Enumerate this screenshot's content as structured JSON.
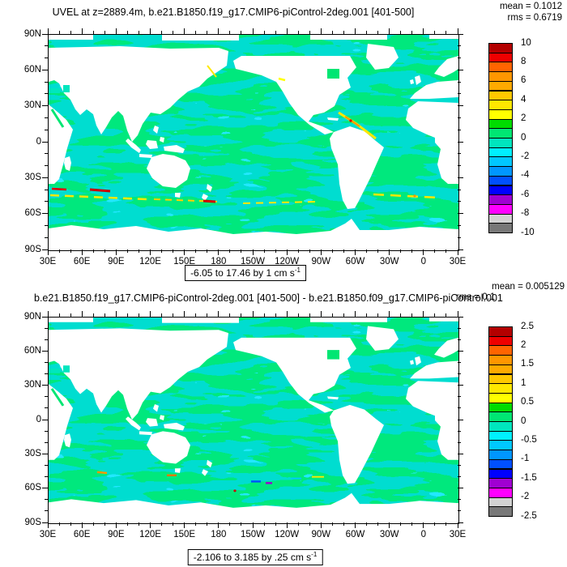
{
  "panel1": {
    "title": "UVEL at z=2889.4m, b.e21.B1850.f19_g17.CMIP6-piControl-2deg.001 [401-500]",
    "mean": "mean = 0.1012",
    "rms": "rms = 0.6719",
    "caption": "-6.05 to 17.46 by 1 cm s",
    "caption_sup": "-1",
    "colorbar_labels": [
      "10",
      "8",
      "6",
      "4",
      "2",
      "0",
      "-2",
      "-4",
      "-6",
      "-8",
      "-10"
    ]
  },
  "panel2": {
    "title": "b.e21.B1850.f19_g17.CMIP6-piControl-2deg.001 [401-500] - b.e21.B1850.f09_g17.CMIP6-piControl.001",
    "mean": "mean = 0.005129",
    "rms": "rms = 0.1",
    "caption": "-2.106 to 3.185 by .25 cm s",
    "caption_sup": "-1",
    "colorbar_labels": [
      "2.5",
      "2",
      "1.5",
      "1",
      "0.5",
      "0",
      "-0.5",
      "-1",
      "-1.5",
      "-2",
      "-2.5"
    ]
  },
  "axes": {
    "lon_labels": [
      "30E",
      "60E",
      "90E",
      "120E",
      "150E",
      "180",
      "150W",
      "120W",
      "90W",
      "60W",
      "30W",
      "0",
      "30E"
    ],
    "lat_labels": [
      "90N",
      "60N",
      "30N",
      "0",
      "30S",
      "60S",
      "90S"
    ]
  },
  "colors": {
    "scale": [
      "#b40000",
      "#ee0000",
      "#ff6400",
      "#ff9600",
      "#ffaa00",
      "#ffc800",
      "#ffe800",
      "#ffff00",
      "#00dc00",
      "#00e673",
      "#00e6be",
      "#00f0ff",
      "#00c8ff",
      "#0096ff",
      "#0050ff",
      "#0000ff",
      "#a000d2",
      "#ff00ff",
      "#d2d2d2",
      "#787878"
    ],
    "ocean_green": "#00e87d",
    "ocean_turquoise": "#00ddd0",
    "ocean_cyan": "#20e8ff",
    "land": "#ffffff",
    "frame": "#000000"
  },
  "chart_data": [
    {
      "type": "heatmap",
      "variable": "UVEL",
      "depth": "z=2889.4m",
      "title": "UVEL at z=2889.4m, b.e21.B1850.f19_g17.CMIP6-piControl-2deg.001 [401-500]",
      "units": "cm s-1",
      "stats": {
        "mean": 0.1012,
        "rms": 0.6719
      },
      "range": {
        "min": -6.05,
        "max": 17.46,
        "contour_interval": 1
      },
      "colorbar_levels": [
        10,
        8,
        6,
        4,
        2,
        0,
        -2,
        -4,
        -6,
        -8,
        -10
      ],
      "palette": [
        "#b40000",
        "#ee0000",
        "#ff6400",
        "#ff9600",
        "#ffaa00",
        "#ffc800",
        "#ffe800",
        "#ffff00",
        "#00dc00",
        "#00e673",
        "#00e6be",
        "#00f0ff",
        "#00c8ff",
        "#0096ff",
        "#0050ff",
        "#0000ff",
        "#a000d2",
        "#ff00ff",
        "#d2d2d2",
        "#787878"
      ],
      "x_ticks": [
        "30E",
        "60E",
        "90E",
        "120E",
        "150E",
        "180",
        "150W",
        "120W",
        "90W",
        "60W",
        "30W",
        "0",
        "30E"
      ],
      "y_ticks": [
        "90N",
        "60N",
        "30N",
        "0",
        "30S",
        "60S",
        "90S"
      ],
      "projection": "global cylindrical equidistant, longitude 30E to 30E (wrap), land masked white",
      "features": "ocean interior mostly 0 to 1 cm/s (spring green) with 0 to -1 patches (turquoise/cyan); strong yellow/orange/red streaks along Antarctic Circumpolar Current near 50-60S and along western boundary currents (Gulf Stream / Caribbean coast)"
    },
    {
      "type": "heatmap",
      "variable": "UVEL difference",
      "depth": "z=2889.4m",
      "title": "b.e21.B1850.f19_g17.CMIP6-piControl-2deg.001 [401-500] - b.e21.B1850.f09_g17.CMIP6-piControl.001",
      "units": "cm s-1",
      "stats": {
        "mean": 0.005129,
        "rms": "0.1 (partially obscured by overlapping title)"
      },
      "range": {
        "min": -2.106,
        "max": 3.185,
        "contour_interval": 0.25
      },
      "colorbar_levels": [
        2.5,
        2,
        1.5,
        1,
        0.5,
        0,
        -0.5,
        -1,
        -1.5,
        -2,
        -2.5
      ],
      "palette": [
        "#b40000",
        "#ee0000",
        "#ff6400",
        "#ff9600",
        "#ffaa00",
        "#ffc800",
        "#ffe800",
        "#ffff00",
        "#00dc00",
        "#00e673",
        "#00e6be",
        "#00f0ff",
        "#00c8ff",
        "#0096ff",
        "#0050ff",
        "#0000ff",
        "#a000d2",
        "#ff00ff",
        "#d2d2d2",
        "#787878"
      ],
      "x_ticks": [
        "30E",
        "60E",
        "90E",
        "120E",
        "150E",
        "180",
        "150W",
        "120W",
        "90W",
        "60W",
        "30W",
        "0",
        "30E"
      ],
      "y_ticks": [
        "90N",
        "60N",
        "30N",
        "0",
        "30S",
        "60S",
        "90S"
      ],
      "projection": "global cylindrical equidistant, longitude 30E to 30E (wrap), land masked white",
      "features": "difference field near zero everywhere (green/turquoise) with small orange/blue/purple specks near 50-60S"
    }
  ]
}
